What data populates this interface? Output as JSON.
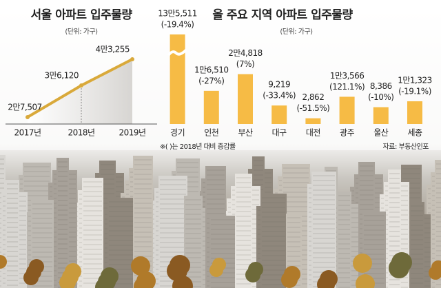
{
  "chart_data": [
    {
      "type": "line",
      "title": "서울 아파트 입주물량",
      "subtitle": "(단위: 가구)",
      "categories": [
        "2017년",
        "2018년",
        "2019년"
      ],
      "values": [
        27507,
        36120,
        43255
      ],
      "value_labels": [
        "2만7,507",
        "3만6,120",
        "4만3,255"
      ],
      "color": "#d9a93a"
    },
    {
      "type": "bar",
      "title": "올 주요 지역 아파트 입주물량",
      "subtitle": "(단위: 가구)",
      "categories": [
        "경기",
        "인천",
        "부산",
        "대구",
        "대전",
        "광주",
        "울산",
        "세종"
      ],
      "values": [
        135511,
        16510,
        24818,
        9219,
        2862,
        13566,
        8386,
        11323
      ],
      "value_labels": [
        "13만5,511",
        "1만6,510",
        "2만4,818",
        "9,219",
        "2,862",
        "1만3,566",
        "8,386",
        "1만1,323"
      ],
      "change_labels": [
        "(-19.4%)",
        "(-27%)",
        "(7%)",
        "(-33.4%)",
        "(-51.5%)",
        "(121.1%)",
        "(-10%)",
        "(-19.1%)"
      ],
      "note": "※( )는 2018년 대비 증감률",
      "source": "자료: 부동산인포",
      "color": "#f6bb45"
    }
  ]
}
